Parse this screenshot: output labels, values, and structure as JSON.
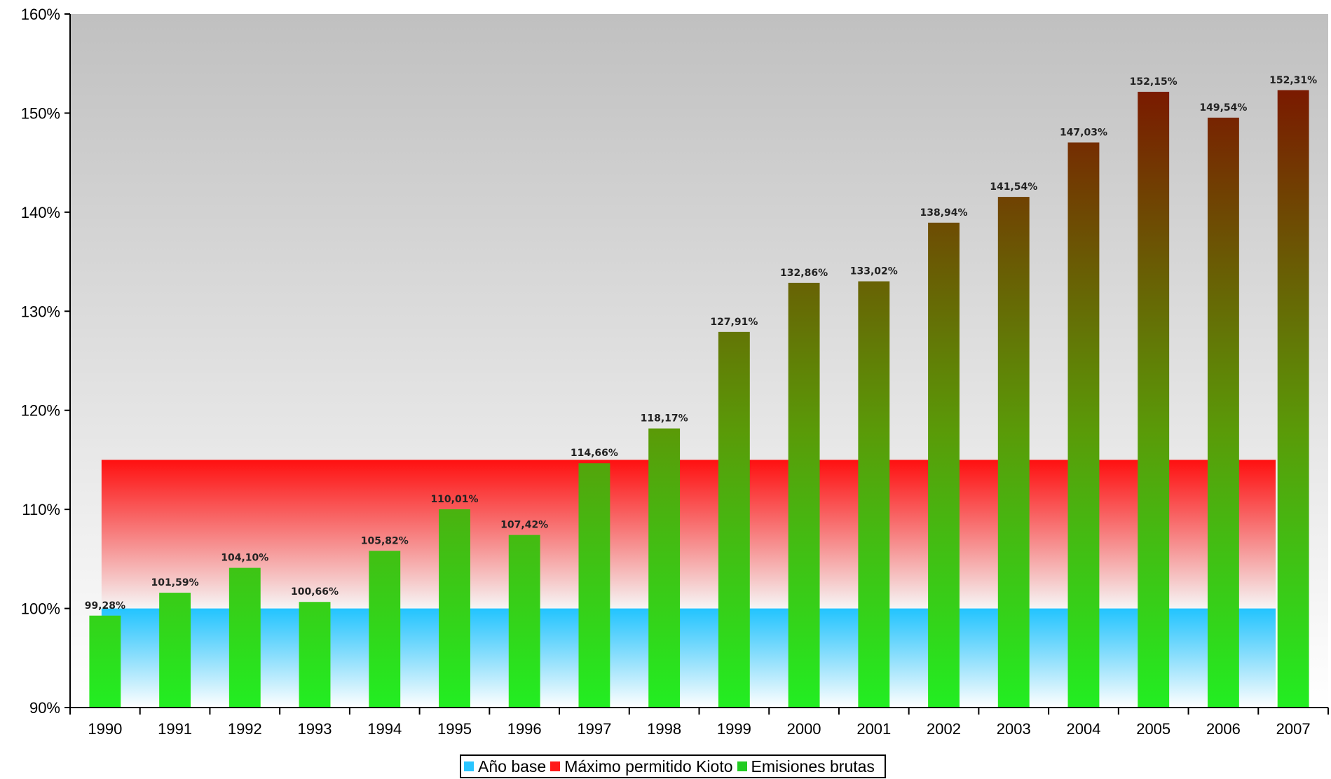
{
  "chart_data": {
    "type": "bar",
    "title": "",
    "xlabel": "",
    "ylabel": "",
    "ylim": [
      90,
      160
    ],
    "yticks": [
      "90%",
      "100%",
      "110%",
      "120%",
      "130%",
      "140%",
      "150%",
      "160%"
    ],
    "ytick_values": [
      90,
      100,
      110,
      120,
      130,
      140,
      150,
      160
    ],
    "categories": [
      "1990",
      "1991",
      "1992",
      "1993",
      "1994",
      "1995",
      "1996",
      "1997",
      "1998",
      "1999",
      "2000",
      "2001",
      "2002",
      "2003",
      "2004",
      "2005",
      "2006",
      "2007"
    ],
    "series": [
      {
        "name": "Emisiones brutas",
        "values": [
          99.28,
          101.59,
          104.1,
          100.66,
          105.82,
          110.01,
          107.42,
          114.66,
          118.17,
          127.91,
          132.86,
          133.02,
          138.94,
          141.54,
          147.03,
          152.15,
          149.54,
          152.31
        ],
        "labels": [
          "99,28%",
          "101,59%",
          "104,10%",
          "100,66%",
          "105,82%",
          "110,01%",
          "107,42%",
          "114,66%",
          "118,17%",
          "127,91%",
          "132,86%",
          "133,02%",
          "138,94%",
          "141,54%",
          "147,03%",
          "152,15%",
          "149,54%",
          "152,31%"
        ],
        "color_top": "#7a1a00",
        "color_bottom": "#22ee22"
      }
    ],
    "bands": [
      {
        "name": "Año base",
        "value": 100,
        "color": "#29c5ff"
      },
      {
        "name": "Máximo permitido Kioto",
        "value": 115,
        "color": "#ff1a1a"
      }
    ],
    "legend": {
      "position": "bottom-center",
      "items": [
        {
          "label": "Año base",
          "color": "#29c5ff"
        },
        {
          "label": "Máximo permitido Kioto",
          "color": "#ff1a1a"
        },
        {
          "label": "Emisiones brutas",
          "color": "#22cc22"
        }
      ]
    },
    "background_gradient": [
      "#c2c2c2",
      "#ffffff"
    ]
  }
}
